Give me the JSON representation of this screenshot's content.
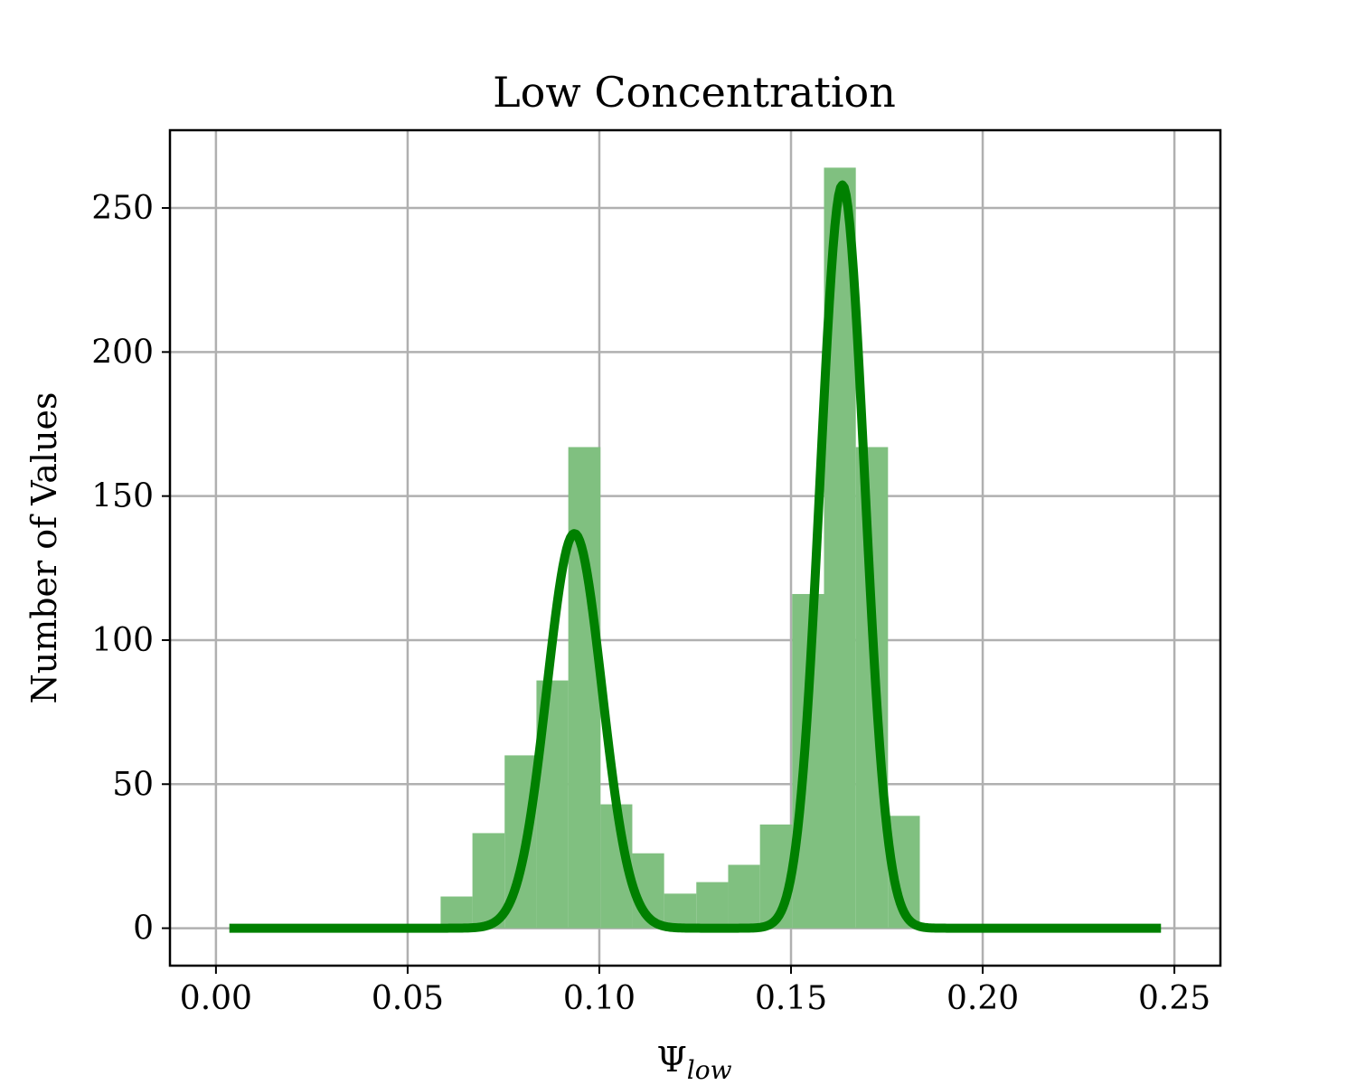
{
  "chart_data": {
    "type": "bar",
    "title": "Low Concentration",
    "xlabel": "Ψ",
    "xlabel_subscript": "low",
    "ylabel": "Number of Values",
    "xlim": [
      -0.012,
      0.262
    ],
    "ylim": [
      -13,
      277
    ],
    "x_ticks": [
      "0.00",
      "0.05",
      "0.10",
      "0.15",
      "0.20",
      "0.25"
    ],
    "x_tick_values": [
      0.0,
      0.05,
      0.1,
      0.15,
      0.2,
      0.25
    ],
    "y_ticks": [
      "0",
      "50",
      "100",
      "150",
      "200",
      "250"
    ],
    "y_tick_values": [
      0,
      50,
      100,
      150,
      200,
      250
    ],
    "grid": true,
    "bar_color": "#80c080",
    "bins": {
      "edges": [
        0.0586,
        0.0669,
        0.0753,
        0.0836,
        0.0919,
        0.1003,
        0.1086,
        0.1169,
        0.1253,
        0.1336,
        0.1419,
        0.1503,
        0.1586,
        0.1669,
        0.1753,
        0.1836
      ],
      "counts": [
        11,
        33,
        60,
        86,
        167,
        43,
        26,
        12,
        16,
        22,
        36,
        116,
        264,
        167,
        39
      ]
    },
    "series": [
      {
        "type": "line",
        "color": "#008000",
        "x_range": [
          0.0035,
          0.2465
        ],
        "components": [
          {
            "amplitude": 137,
            "mean": 0.0935,
            "sigma": 0.0072
          },
          {
            "amplitude": 258,
            "mean": 0.1634,
            "sigma": 0.0058
          }
        ]
      }
    ]
  }
}
